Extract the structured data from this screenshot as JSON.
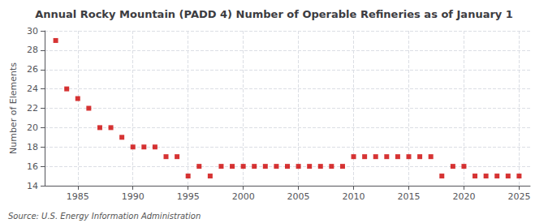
{
  "chart_data": {
    "type": "scatter",
    "title": "Annual Rocky Mountain (PADD 4) Number of Operable Refineries as of January 1",
    "ylabel": "Number of Elements",
    "annotations": [
      "Source: U.S. Energy Information Administration"
    ],
    "x": [
      1983,
      1984,
      1985,
      1986,
      1987,
      1988,
      1989,
      1990,
      1991,
      1992,
      1993,
      1994,
      1995,
      1996,
      1997,
      1998,
      1999,
      2000,
      2001,
      2002,
      2003,
      2004,
      2005,
      2006,
      2007,
      2008,
      2009,
      2010,
      2011,
      2012,
      2013,
      2014,
      2015,
      2016,
      2017,
      2018,
      2019,
      2020,
      2021,
      2022,
      2023,
      2024,
      2025
    ],
    "values": [
      29,
      24,
      23,
      22,
      20,
      20,
      19,
      18,
      18,
      18,
      17,
      17,
      15,
      16,
      15,
      16,
      16,
      16,
      16,
      16,
      16,
      16,
      16,
      16,
      16,
      16,
      16,
      17,
      17,
      17,
      17,
      17,
      17,
      17,
      17,
      15,
      16,
      16,
      15,
      15,
      15,
      15,
      15
    ],
    "color": "#cc0000",
    "marker": "square",
    "xlim": [
      1982,
      2026
    ],
    "xticks": [
      1985,
      1990,
      1995,
      2000,
      2005,
      2010,
      2015,
      2020,
      2025
    ],
    "ylim": [
      14,
      30
    ],
    "yticks": [
      14,
      16,
      18,
      20,
      22,
      24,
      26,
      28,
      30
    ],
    "grid": true
  }
}
